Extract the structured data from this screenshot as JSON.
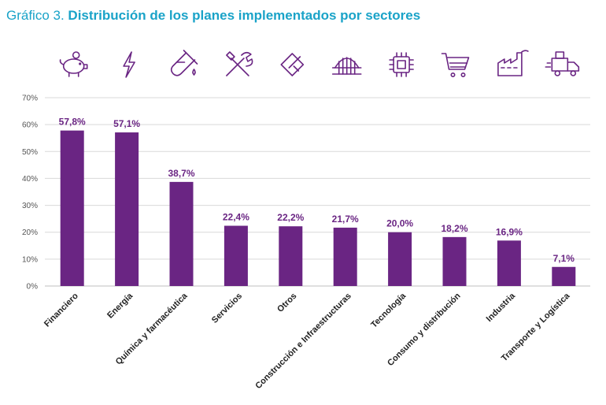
{
  "title": {
    "prefix": "Gráfico 3.",
    "main": " Distribución de los planes implementados por sectores"
  },
  "colors": {
    "title": "#1aa3c8",
    "bar": "#6a2583",
    "grid": "#d9d9d9"
  },
  "icons": [
    "piggy-bank-icon",
    "lightning-icon",
    "test-tube-icon",
    "tools-icon",
    "flag-icon",
    "bridge-icon",
    "chip-icon",
    "shopping-cart-icon",
    "factory-icon",
    "delivery-truck-icon"
  ],
  "chart_data": {
    "type": "bar",
    "categories": [
      "Financiero",
      "Energía",
      "Química y farmacéutica",
      "Servicios",
      "Otros",
      "Construcción e Infraestructuras",
      "Tecnología",
      "Consumo y distribución",
      "Industria",
      "Transporte y Logística"
    ],
    "values": [
      57.8,
      57.1,
      38.7,
      22.4,
      22.2,
      21.7,
      20.0,
      18.2,
      16.9,
      7.1
    ],
    "data_labels": [
      "57,8%",
      "57,1%",
      "38,7%",
      "22,4%",
      "22,2%",
      "21,7%",
      "20,0%",
      "18,2%",
      "16,9%",
      "7,1%"
    ],
    "ylim": [
      0,
      70
    ],
    "yticks": [
      0,
      10,
      20,
      30,
      40,
      50,
      60,
      70
    ],
    "ytick_labels": [
      "0%",
      "10%",
      "20%",
      "30%",
      "40%",
      "50%",
      "60%",
      "70%"
    ],
    "grid": true,
    "legend": "none"
  }
}
